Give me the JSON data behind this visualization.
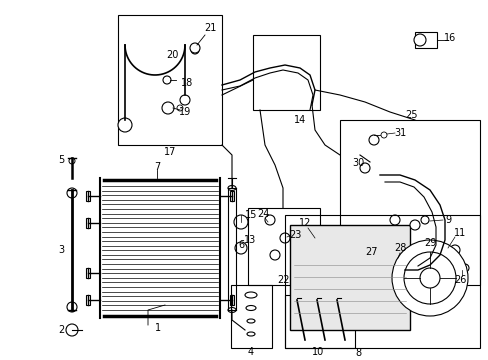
{
  "bg_color": "#ffffff",
  "line_color": "#000000",
  "fig_width": 4.89,
  "fig_height": 3.6,
  "dpi": 100,
  "label_fontsize": 7.0
}
